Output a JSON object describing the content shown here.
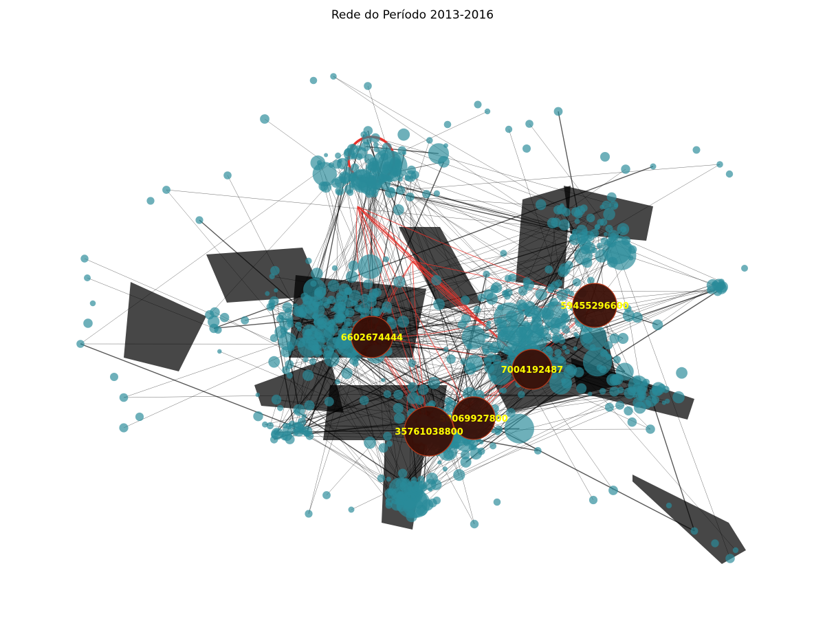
{
  "figure": {
    "title": "Rede do Período 2013-2016"
  },
  "style": {
    "node_color": "#2a8a9a",
    "hub_color": "#3a0f06",
    "hub_edge_color": "#b83a1a",
    "edge_color": "#000000",
    "highlight_edge_color": "#e8322b",
    "label_color": "#ffff00"
  },
  "hubs": [
    {
      "id": "6602674444",
      "label": "6602674444"
    },
    {
      "id": "59455296600",
      "label": "59455296600"
    },
    {
      "id": "7004192487",
      "label": "7004192487"
    },
    {
      "id": "58069927800",
      "label": "58069927800"
    },
    {
      "id": "35761038800",
      "label": "35761038800"
    }
  ]
}
